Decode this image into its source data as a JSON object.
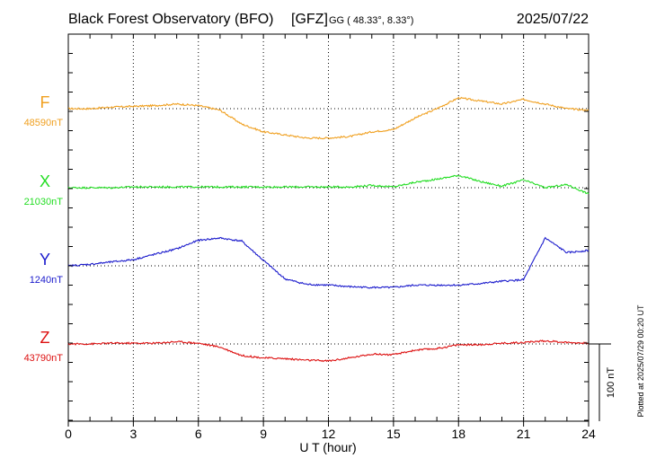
{
  "header": {
    "station": "Black Forest Observatory (BFO)",
    "agency": "[GFZ]",
    "coords": "GG ( 48.33°,   8.33°)",
    "date": "2025/07/22"
  },
  "footer": {
    "plotted": "Plotted at 2025/07/29 00:20 UT"
  },
  "chart_data": {
    "type": "line",
    "xlabel": "U T (hour)",
    "xlim": [
      0,
      24
    ],
    "xticks": [
      "0",
      "3",
      "6",
      "9",
      "12",
      "15",
      "18",
      "21",
      "24"
    ],
    "grid": true,
    "scale_bar": {
      "label": "100 nT",
      "value_nT": 100
    },
    "series": [
      {
        "name": "F",
        "baseline_label": "48590nT",
        "baseline_nT": 48590,
        "color": "#f0a020",
        "x": [
          0,
          1,
          2,
          3,
          4,
          5,
          6,
          7,
          8,
          9,
          10,
          11,
          12,
          13,
          14,
          15,
          16,
          17,
          18,
          19,
          20,
          21,
          22,
          23,
          24
        ],
        "y": [
          48590,
          48590,
          48592,
          48593,
          48594,
          48596,
          48594,
          48588,
          48570,
          48560,
          48556,
          48552,
          48552,
          48554,
          48560,
          48563,
          48578,
          48590,
          48604,
          48600,
          48596,
          48602,
          48596,
          48590,
          48588
        ]
      },
      {
        "name": "X",
        "baseline_label": "21030nT",
        "baseline_nT": 21030,
        "color": "#22dd22",
        "x": [
          0,
          1,
          2,
          3,
          4,
          5,
          6,
          7,
          8,
          9,
          10,
          11,
          12,
          13,
          14,
          15,
          16,
          17,
          18,
          19,
          20,
          21,
          22,
          23,
          24
        ],
        "y": [
          21030,
          21030,
          21030,
          21031,
          21031,
          21031,
          21031,
          21031,
          21031,
          21031,
          21031,
          21031,
          21031,
          21031,
          21033,
          21031,
          21037,
          21041,
          21046,
          21038,
          21032,
          21040,
          21030,
          21034,
          21022
        ]
      },
      {
        "name": "Y",
        "baseline_label": "1240nT",
        "baseline_nT": 1240,
        "color": "#1a1acc",
        "x": [
          0,
          1,
          2,
          3,
          4,
          5,
          6,
          7,
          8,
          9,
          10,
          11,
          12,
          13,
          14,
          15,
          16,
          17,
          18,
          19,
          20,
          21,
          22,
          23,
          24
        ],
        "y": [
          1240,
          1242,
          1245,
          1248,
          1255,
          1262,
          1273,
          1276,
          1272,
          1247,
          1223,
          1216,
          1215,
          1213,
          1212,
          1212,
          1215,
          1215,
          1215,
          1217,
          1220,
          1222,
          1276,
          1257,
          1260
        ]
      },
      {
        "name": "Z",
        "baseline_label": "43790nT",
        "baseline_nT": 43790,
        "color": "#dd1111",
        "x": [
          0,
          1,
          2,
          3,
          4,
          5,
          6,
          7,
          8,
          9,
          10,
          11,
          12,
          13,
          14,
          15,
          16,
          17,
          18,
          19,
          20,
          21,
          22,
          23,
          24
        ],
        "y": [
          43790,
          43790,
          43791,
          43791,
          43791,
          43793,
          43791,
          43786,
          43775,
          43772,
          43771,
          43769,
          43768,
          43772,
          43777,
          43776,
          43782,
          43784,
          43789,
          43789,
          43791,
          43792,
          43794,
          43792,
          43791
        ]
      }
    ]
  }
}
